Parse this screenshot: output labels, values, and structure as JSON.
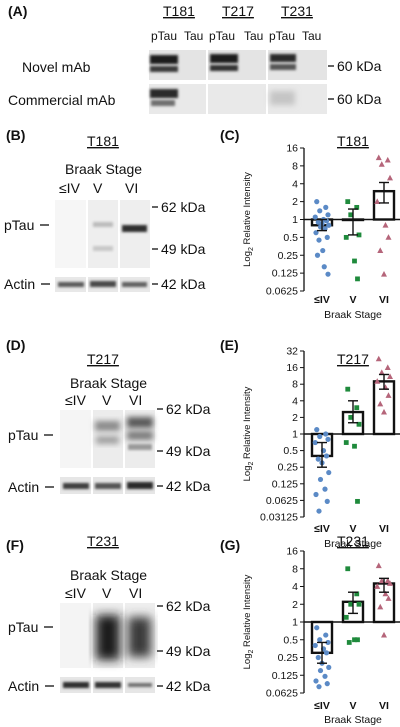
{
  "panelA": {
    "letter": "(A)",
    "sites": [
      "T181",
      "T217",
      "T231"
    ],
    "col_labels": [
      "pTau",
      "Tau"
    ],
    "rows": [
      {
        "label": "Novel mAb",
        "marker": "60 kDa"
      },
      {
        "label": "Commercial mAb",
        "marker": "60 kDa"
      }
    ]
  },
  "blots": [
    {
      "letter": "(B)",
      "site": "T181",
      "heading": "Braak Stage",
      "lanes": [
        "≤IV",
        "V",
        "VI"
      ],
      "markers": [
        "62 kDa",
        "49 kDa"
      ],
      "actin_marker": "42 kDa",
      "row_labels": [
        "pTau",
        "Actin"
      ]
    },
    {
      "letter": "(D)",
      "site": "T217",
      "heading": "Braak Stage",
      "lanes": [
        "≤IV",
        "V",
        "VI"
      ],
      "markers": [
        "62 kDa",
        "49 kDa"
      ],
      "actin_marker": "42 kDa",
      "row_labels": [
        "pTau",
        "Actin"
      ]
    },
    {
      "letter": "(F)",
      "site": "T231",
      "heading": "Braak Stage",
      "lanes": [
        "≤IV",
        "V",
        "VI"
      ],
      "markers": [
        "62 kDa",
        "49 kDa"
      ],
      "actin_marker": "42 kDa",
      "row_labels": [
        "pTau",
        "Actin"
      ]
    }
  ],
  "colors": {
    "iv": "#5b8ac6",
    "v": "#1f8a3c",
    "vi": "#b5657a",
    "bar": "#111111"
  },
  "chart_data": [
    {
      "letter": "(C)",
      "type": "bar",
      "title": "T181",
      "ylabel": "Log2 Relative Intensity",
      "xlabel": "Braak Stage",
      "scale": "log2",
      "ylim": [
        0.0625,
        16
      ],
      "yticks": [
        "16",
        "8",
        "4",
        "2",
        "1",
        "0.5",
        "0.25",
        "0.125",
        "0.0625"
      ],
      "categories": [
        "≤IV",
        "V",
        "VI"
      ],
      "bars": [
        0.8,
        1.0,
        3.0
      ],
      "errors": [
        [
          0.65,
          1.0
        ],
        [
          0.55,
          1.5
        ],
        [
          1.9,
          4.2
        ]
      ],
      "points": [
        [
          2.0,
          1.6,
          1.4,
          1.2,
          1.1,
          1.0,
          0.95,
          0.9,
          0.85,
          0.8,
          0.75,
          0.7,
          0.6,
          0.5,
          0.45,
          0.3,
          0.25,
          0.16,
          0.12
        ],
        [
          2.0,
          1.6,
          1.2,
          0.55,
          0.5,
          0.2,
          0.1
        ],
        [
          11,
          10,
          8.5,
          5,
          2,
          0.8,
          0.5,
          0.3,
          0.12
        ]
      ]
    },
    {
      "letter": "(E)",
      "type": "bar",
      "title": "T217",
      "ylabel": "Log2 Relative Intensity",
      "xlabel": "Braak Stage",
      "scale": "log2",
      "ylim": [
        0.03125,
        32
      ],
      "yticks": [
        "32",
        "16",
        "8",
        "4",
        "2",
        "1",
        "0.5",
        "0.25",
        "0.125",
        "0.0625",
        "0.03125"
      ],
      "categories": [
        "≤IV",
        "V",
        "VI"
      ],
      "bars": [
        0.4,
        2.5,
        9.0
      ],
      "errors": [
        [
          0.25,
          0.7
        ],
        [
          1.6,
          4.0
        ],
        [
          6.5,
          12.0
        ]
      ],
      "points": [
        [
          1.2,
          1.0,
          0.9,
          0.8,
          0.7,
          0.5,
          0.4,
          0.35,
          0.3,
          0.2,
          0.15,
          0.1,
          0.08,
          0.06,
          0.04
        ],
        [
          6.5,
          3.0,
          2.0,
          1.5,
          0.7,
          0.6,
          0.06
        ],
        [
          23,
          16,
          13,
          11,
          9,
          7,
          5,
          3.5,
          2.5
        ]
      ]
    },
    {
      "letter": "(G)",
      "type": "bar",
      "title": "T231",
      "ylabel": "Log2 Relative Intensity",
      "xlabel": "Braak Stage",
      "scale": "log2",
      "ylim": [
        0.0625,
        16
      ],
      "yticks": [
        "16",
        "8",
        "4",
        "2",
        "1",
        "0.5",
        "0.25",
        "0.125",
        "0.0625"
      ],
      "categories": [
        "≤IV",
        "V",
        "VI"
      ],
      "bars": [
        0.3,
        2.2,
        4.5
      ],
      "errors": [
        [
          0.2,
          0.45
        ],
        [
          1.4,
          3.2
        ],
        [
          3.2,
          5.5
        ]
      ],
      "points": [
        [
          0.8,
          0.6,
          0.5,
          0.45,
          0.4,
          0.35,
          0.3,
          0.25,
          0.2,
          0.17,
          0.15,
          0.12,
          0.1,
          0.09,
          0.08
        ],
        [
          8,
          3,
          2,
          2,
          1.2,
          0.5,
          0.5,
          0.45
        ],
        [
          9,
          5,
          5,
          4.5,
          4,
          3,
          2.5,
          1.8,
          0.6
        ]
      ]
    }
  ]
}
